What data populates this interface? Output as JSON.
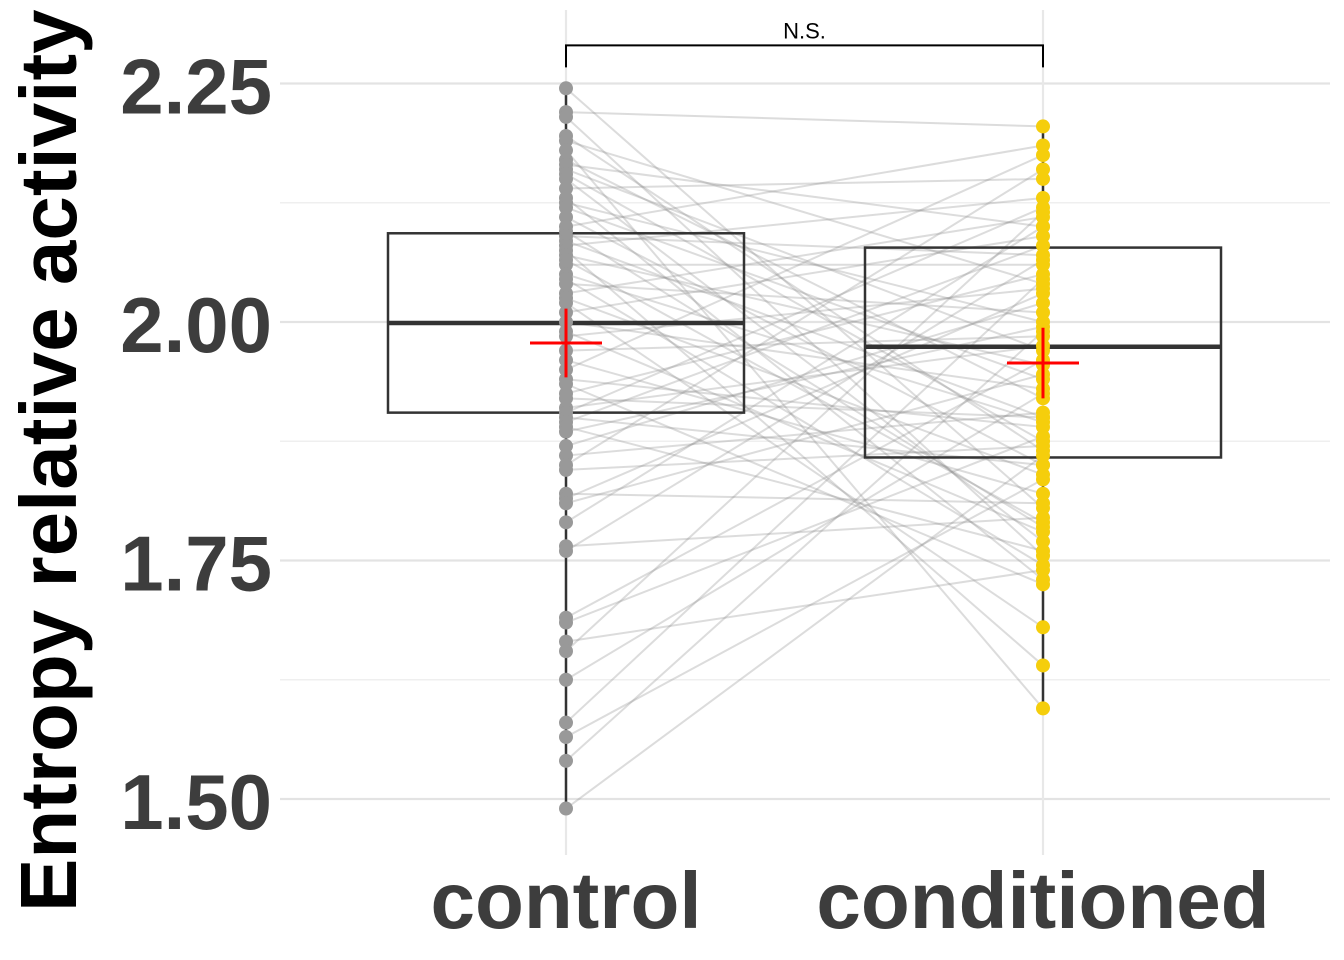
{
  "chart_data": {
    "type": "box",
    "ylabel": "Entropy relative activity",
    "ylim": [
      1.445,
      2.315
    ],
    "yticks": [
      1.5,
      1.75,
      2.0,
      2.25
    ],
    "yticks_minor": [
      1.625,
      1.875,
      2.125
    ],
    "grid": true,
    "categories": [
      "control",
      "conditioned"
    ],
    "significance": {
      "label": "N.S.",
      "between": [
        "control",
        "conditioned"
      ],
      "y": 2.29
    },
    "boxes": [
      {
        "category": "control",
        "q1": 1.905,
        "median": 1.999,
        "q3": 2.093,
        "whisker_low": 1.49,
        "whisker_high": 2.245,
        "mean": 1.978,
        "mean_err": 0.036
      },
      {
        "category": "conditioned",
        "q1": 1.858,
        "median": 1.974,
        "q3": 2.078,
        "whisker_low": 1.592,
        "whisker_high": 2.205,
        "mean": 1.957,
        "mean_err": 0.037
      }
    ],
    "series": [
      {
        "name": "control",
        "color": "#999999",
        "values": [
          2.245,
          2.22,
          2.215,
          2.195,
          2.19,
          2.18,
          2.17,
          2.165,
          2.16,
          2.155,
          2.15,
          2.14,
          2.13,
          2.125,
          2.12,
          2.11,
          2.1,
          2.095,
          2.09,
          2.085,
          2.08,
          2.075,
          2.07,
          2.065,
          2.06,
          2.05,
          2.045,
          2.04,
          2.03,
          2.025,
          2.02,
          2.01,
          2.0,
          1.99,
          1.985,
          1.97,
          1.96,
          1.95,
          1.94,
          1.935,
          1.925,
          1.92,
          1.91,
          1.905,
          1.9,
          1.895,
          1.89,
          1.885,
          1.87,
          1.86,
          1.85,
          1.845,
          1.82,
          1.815,
          1.81,
          1.79,
          1.765,
          1.76,
          1.69,
          1.685,
          1.665,
          1.655,
          1.625,
          1.58,
          1.565,
          1.54,
          1.49
        ]
      },
      {
        "name": "conditioned",
        "color": "#f5ce0c",
        "values": [
          1.805,
          2.205,
          1.755,
          1.865,
          2.04,
          1.595,
          1.92,
          2.1,
          1.97,
          1.875,
          1.77,
          2.15,
          1.73,
          2.0,
          1.94,
          1.85,
          2.185,
          1.785,
          2.07,
          1.9,
          2.13,
          1.64,
          1.955,
          1.79,
          2.06,
          1.895,
          1.745,
          2.01,
          2.11,
          1.84,
          1.68,
          2.09,
          1.93,
          1.78,
          2.035,
          1.985,
          1.82,
          2.175,
          1.89,
          1.725,
          2.05,
          1.9,
          1.975,
          2.12,
          1.85,
          2.08,
          1.76,
          1.995,
          2.02,
          1.905,
          2.16,
          1.87,
          1.81,
          2.03,
          1.945,
          2.1,
          1.795,
          2.065,
          1.96,
          1.88,
          1.74,
          2.115,
          1.925,
          2.045,
          1.835,
          1.99,
          1.86
        ]
      }
    ]
  }
}
